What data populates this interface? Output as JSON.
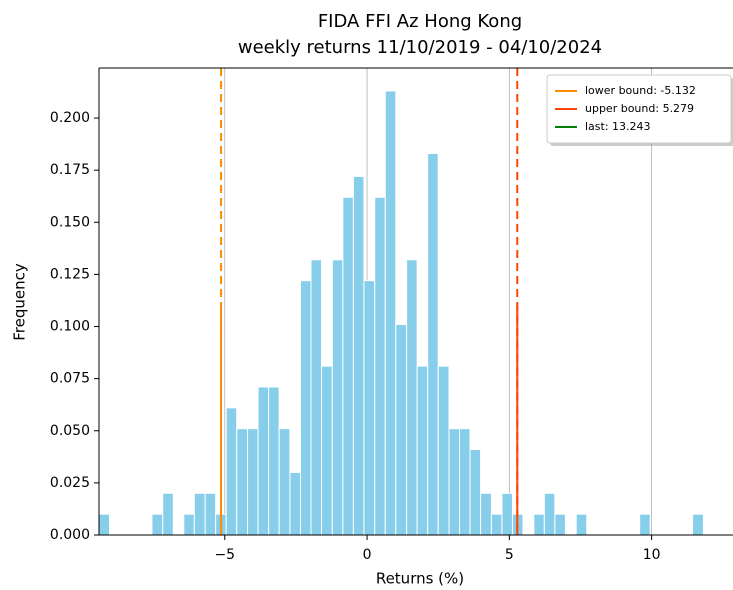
{
  "chart_data": {
    "type": "histogram",
    "title": [
      "FIDA FFI Az Hong Kong",
      "weekly returns 11/10/2019 - 04/10/2024"
    ],
    "xlabel": "Returns (%)",
    "ylabel": "Frequency",
    "color": "#87ceeb",
    "bins": [
      -9.42,
      -9.05,
      -8.67,
      -8.3,
      -7.93,
      -7.56,
      -7.18,
      -6.81,
      -6.44,
      -6.07,
      -5.69,
      -5.32,
      -4.95,
      -4.58,
      -4.2,
      -3.83,
      -3.46,
      -3.09,
      -2.71,
      -2.34,
      -1.97,
      -1.6,
      -1.22,
      -0.85,
      -0.48,
      -0.11,
      0.27,
      0.64,
      1.01,
      1.39,
      1.76,
      2.13,
      2.5,
      2.88,
      3.25,
      3.62,
      3.99,
      4.37,
      4.74,
      5.11,
      5.48,
      5.86,
      6.23,
      6.6,
      6.97,
      7.35,
      7.72,
      8.09,
      8.46,
      8.84,
      9.21,
      9.58,
      9.95,
      10.33,
      10.7,
      11.07,
      11.44,
      11.82
    ],
    "values": [
      0.01,
      0,
      0,
      0,
      0,
      0.01,
      0.02,
      0,
      0.01,
      0.02,
      0.02,
      0.01,
      0.061,
      0.051,
      0.051,
      0.071,
      0.071,
      0.051,
      0.03,
      0.122,
      0.132,
      0.081,
      0.132,
      0.162,
      0.172,
      0.122,
      0.162,
      0.213,
      0.101,
      0.132,
      0.081,
      0.183,
      0.081,
      0.051,
      0.051,
      0.041,
      0.02,
      0.01,
      0.02,
      0.01,
      0,
      0.01,
      0.02,
      0.01,
      0,
      0.01,
      0,
      0,
      0,
      0,
      0,
      0.01,
      0,
      0,
      0,
      0,
      0.01
    ],
    "lines": [
      {
        "name": "lower bound: -5.132",
        "value": -5.132,
        "color": "#ff8c00",
        "solid_to": 0.11
      },
      {
        "name": "upper bound: 5.279",
        "value": 5.279,
        "color": "#ff4500",
        "solid_to": 0.11
      },
      {
        "name": "last: 13.243",
        "value": 13.243,
        "color": "#008000",
        "solid_to": 0.11
      }
    ],
    "xlim": [
      -9.42,
      12.86
    ],
    "ylim": [
      0,
      0.224
    ],
    "xticks": [
      {
        "value": -5,
        "label": "−5"
      },
      0,
      5,
      10
    ],
    "yticks": [
      {
        "value": 0,
        "label": "0.000"
      },
      {
        "value": 0.025,
        "label": "0.025"
      },
      {
        "value": 0.05,
        "label": "0.050"
      },
      {
        "value": 0.075,
        "label": "0.075"
      },
      {
        "value": 0.1,
        "label": "0.100"
      },
      {
        "value": 0.125,
        "label": "0.125"
      },
      {
        "value": 0.15,
        "label": "0.150"
      },
      {
        "value": 0.175,
        "label": "0.175"
      },
      {
        "value": 0.2,
        "label": "0.200"
      }
    ],
    "grid": "x",
    "legend": "upper right"
  }
}
